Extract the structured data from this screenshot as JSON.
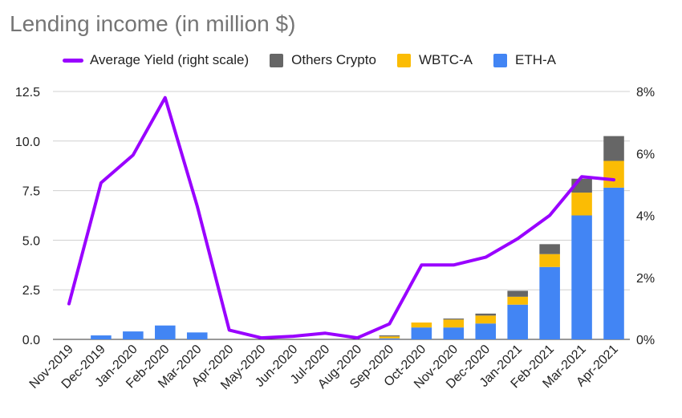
{
  "chart_data": {
    "type": "bar",
    "stacked": true,
    "title": "Lending income (in million $)",
    "xlabel": "",
    "ylabel": "",
    "ylim": [
      0,
      12.5
    ],
    "yticks": [
      "0.0",
      "2.5",
      "5.0",
      "7.5",
      "10.0",
      "12.5"
    ],
    "y2lim": [
      0,
      8
    ],
    "y2ticks": [
      "0%",
      "2%",
      "4%",
      "6%",
      "8%"
    ],
    "grid": true,
    "legend_position": "top",
    "categories": [
      "Nov-2019",
      "Dec-2019",
      "Jan-2020",
      "Feb-2020",
      "Mar-2020",
      "Apr-2020",
      "May-2020",
      "Jun-2020",
      "Jul-2020",
      "Aug-2020",
      "Sep-2020",
      "Oct-2020",
      "Nov-2020",
      "Dec-2020",
      "Jan-2021",
      "Feb-2021",
      "Mar-2021",
      "Apr-2021"
    ],
    "series": [
      {
        "name": "ETH-A",
        "type": "bar",
        "color": "#4285f4",
        "values": [
          0,
          0.2,
          0.4,
          0.7,
          0.35,
          0,
          0,
          0,
          0,
          0,
          0.05,
          0.6,
          0.6,
          0.8,
          1.75,
          3.65,
          6.25,
          7.65
        ]
      },
      {
        "name": "WBTC-A",
        "type": "bar",
        "color": "#fbbc04",
        "values": [
          0,
          0,
          0,
          0,
          0,
          0,
          0,
          0,
          0,
          0,
          0.1,
          0.25,
          0.4,
          0.4,
          0.4,
          0.65,
          1.15,
          1.35
        ]
      },
      {
        "name": "Others Crypto",
        "type": "bar",
        "color": "#666666",
        "values": [
          0,
          0,
          0,
          0,
          0,
          0,
          0,
          0,
          0,
          0,
          0.05,
          0,
          0.05,
          0.1,
          0.3,
          0.5,
          0.7,
          1.25
        ]
      },
      {
        "name": "Average Yield (right scale)",
        "type": "line",
        "axis": "right",
        "unit": "%",
        "color": "#9900ff",
        "values": [
          1.15,
          5.05,
          5.95,
          7.8,
          4.3,
          0.3,
          0.05,
          0.1,
          0.2,
          0.05,
          0.5,
          2.4,
          2.4,
          2.65,
          3.25,
          4.0,
          5.25,
          5.15
        ]
      }
    ]
  },
  "legend": {
    "items": [
      {
        "label": "Average Yield (right scale)",
        "color": "#9900ff"
      },
      {
        "label": "Others Crypto",
        "color": "#666666"
      },
      {
        "label": "WBTC-A",
        "color": "#fbbc04"
      },
      {
        "label": "ETH-A",
        "color": "#4285f4"
      }
    ]
  }
}
